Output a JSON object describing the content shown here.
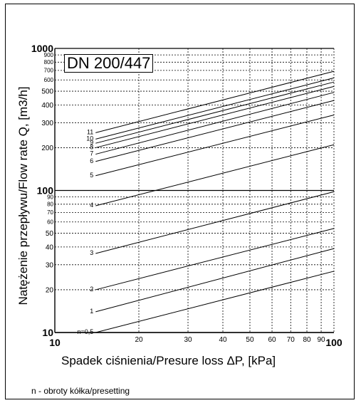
{
  "chart_data": {
    "type": "line",
    "title": "DN 200/447",
    "xlabel": "Spadek ciśnienia/Presure loss ΔP, [kPa]",
    "ylabel": "Natężenie przepływu/Flow rate Q, [m3/h]",
    "x_scale": "log",
    "y_scale": "log",
    "xlim": [
      10,
      100
    ],
    "ylim": [
      10,
      1000
    ],
    "grid": true,
    "x_ticks": [
      "10",
      "20",
      "30",
      "40",
      "50",
      "60",
      "70",
      "80",
      "90",
      "100"
    ],
    "x_tick_values": [
      10,
      20,
      30,
      40,
      50,
      60,
      70,
      80,
      90,
      100
    ],
    "y_ticks": [
      "10",
      "20",
      "30",
      "40",
      "50",
      "60",
      "70",
      "80",
      "90",
      "100",
      "200",
      "300",
      "400",
      "500",
      "600",
      "700",
      "800",
      "900",
      "1000"
    ],
    "y_tick_values": [
      10,
      20,
      30,
      40,
      50,
      60,
      70,
      80,
      90,
      100,
      200,
      300,
      400,
      500,
      600,
      700,
      800,
      900,
      1000
    ],
    "series": [
      {
        "name": "n=0,5",
        "x": [
          14,
          100
        ],
        "y": [
          10,
          27
        ]
      },
      {
        "name": "1",
        "x": [
          14,
          100
        ],
        "y": [
          14,
          39
        ]
      },
      {
        "name": "2",
        "x": [
          14,
          100
        ],
        "y": [
          20,
          54
        ]
      },
      {
        "name": "3",
        "x": [
          14,
          100
        ],
        "y": [
          36,
          98
        ]
      },
      {
        "name": "4",
        "x": [
          14,
          100
        ],
        "y": [
          78,
          210
        ]
      },
      {
        "name": "5",
        "x": [
          14,
          100
        ],
        "y": [
          127,
          340
        ]
      },
      {
        "name": "6",
        "x": [
          14,
          100
        ],
        "y": [
          160,
          430
        ]
      },
      {
        "name": "7",
        "x": [
          14,
          100
        ],
        "y": [
          180,
          490
        ]
      },
      {
        "name": "8",
        "x": [
          14,
          100
        ],
        "y": [
          200,
          540
        ]
      },
      {
        "name": "9",
        "x": [
          14,
          100
        ],
        "y": [
          215,
          580
        ]
      },
      {
        "name": "10",
        "x": [
          14,
          100
        ],
        "y": [
          230,
          620
        ]
      },
      {
        "name": "11",
        "x": [
          14,
          100
        ],
        "y": [
          255,
          690
        ]
      }
    ],
    "note": "n - obroty kółka/presetting"
  }
}
